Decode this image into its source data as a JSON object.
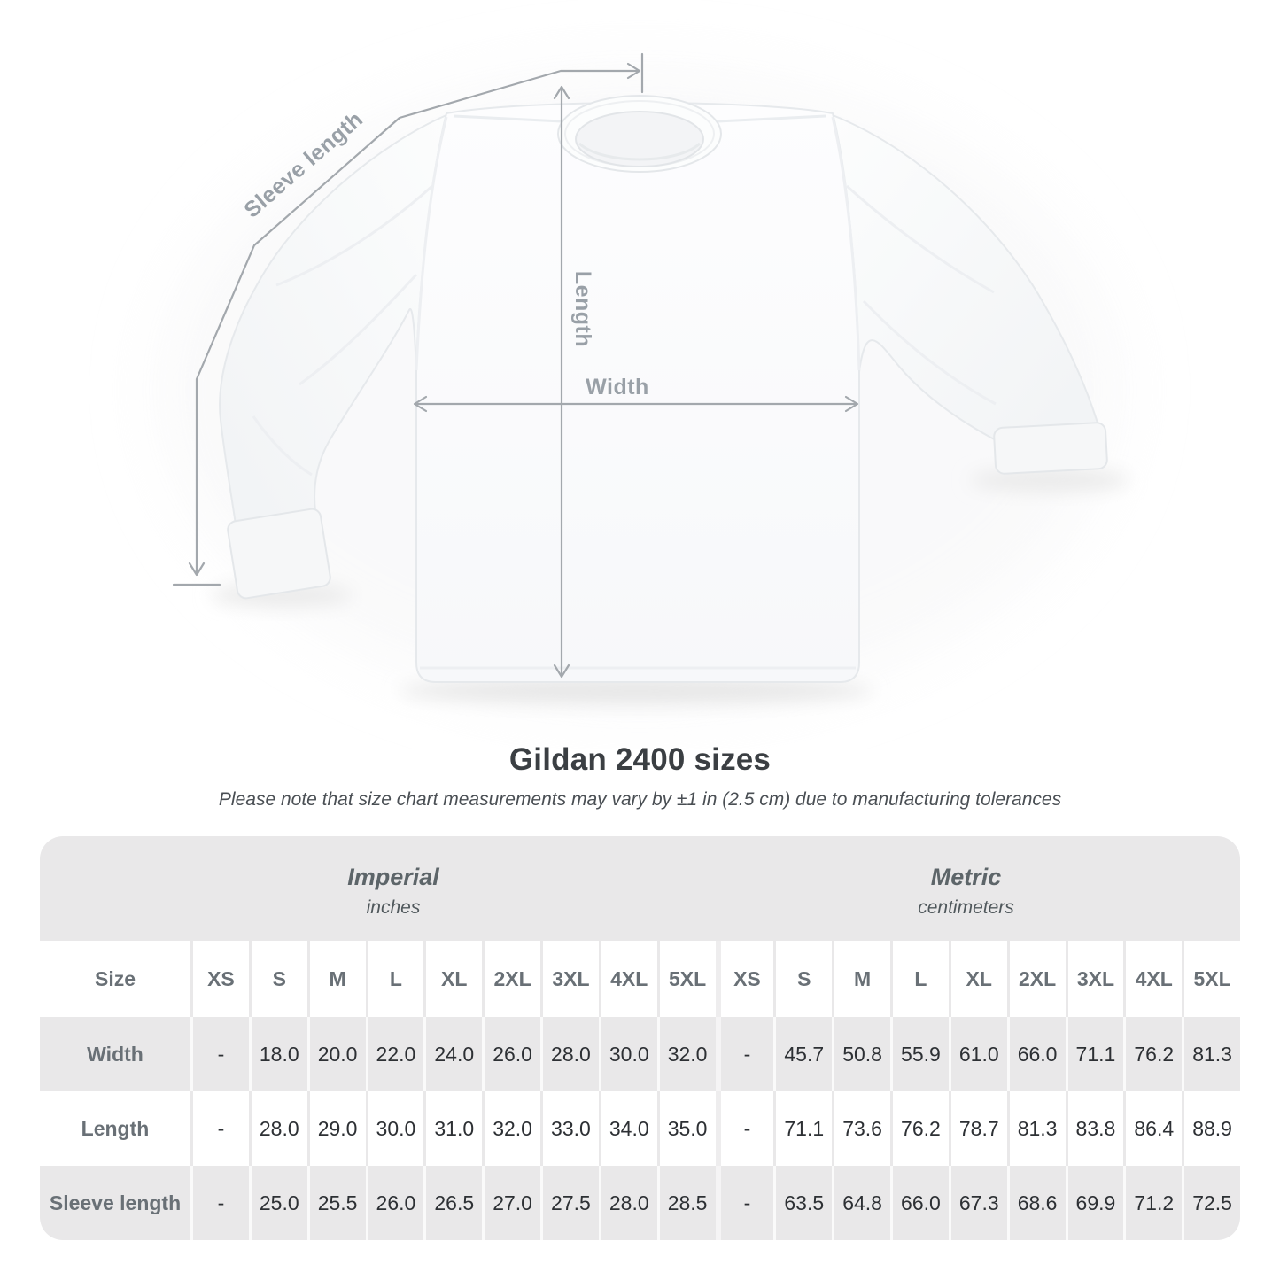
{
  "diagram": {
    "sleeve_label": "Sleeve length",
    "length_label": "Length",
    "width_label": "Width",
    "line_color": "#a3a8ad",
    "label_color": "#99a0a7"
  },
  "heading": {
    "title": "Gildan 2400 sizes",
    "subtitle": "Please note that size chart measurements may vary by ±1 in (2.5 cm) due to manufacturing tolerances"
  },
  "chart_data": {
    "type": "table",
    "title": "Gildan 2400 sizes",
    "subtitle": "Please note that size chart measurements may vary by ±1 in (2.5 cm) due to manufacturing tolerances",
    "corner_label": "Size",
    "column_groups": [
      {
        "label": "Imperial",
        "unit": "inches"
      },
      {
        "label": "Metric",
        "unit": "centimeters"
      }
    ],
    "sizes": [
      "XS",
      "S",
      "M",
      "L",
      "XL",
      "2XL",
      "3XL",
      "4XL",
      "5XL"
    ],
    "rows": [
      {
        "label": "Width",
        "imperial": [
          "-",
          "18.0",
          "20.0",
          "22.0",
          "24.0",
          "26.0",
          "28.0",
          "30.0",
          "32.0"
        ],
        "metric": [
          "-",
          "45.7",
          "50.8",
          "55.9",
          "61.0",
          "66.0",
          "71.1",
          "76.2",
          "81.3"
        ]
      },
      {
        "label": "Length",
        "imperial": [
          "-",
          "28.0",
          "29.0",
          "30.0",
          "31.0",
          "32.0",
          "33.0",
          "34.0",
          "35.0"
        ],
        "metric": [
          "-",
          "71.1",
          "73.6",
          "76.2",
          "78.7",
          "81.3",
          "83.8",
          "86.4",
          "88.9"
        ]
      },
      {
        "label": "Sleeve length",
        "imperial": [
          "-",
          "25.0",
          "25.5",
          "26.0",
          "26.5",
          "27.0",
          "27.5",
          "28.0",
          "28.5"
        ],
        "metric": [
          "-",
          "63.5",
          "64.8",
          "66.0",
          "67.3",
          "68.6",
          "69.9",
          "71.2",
          "72.5"
        ]
      }
    ],
    "layout_hints": {
      "stripe_color": "#e9e8e9",
      "header_text_color": "#697076",
      "value_text_color": "#2d3034",
      "striped_rows": [
        "Width",
        "Sleeve length"
      ]
    }
  }
}
